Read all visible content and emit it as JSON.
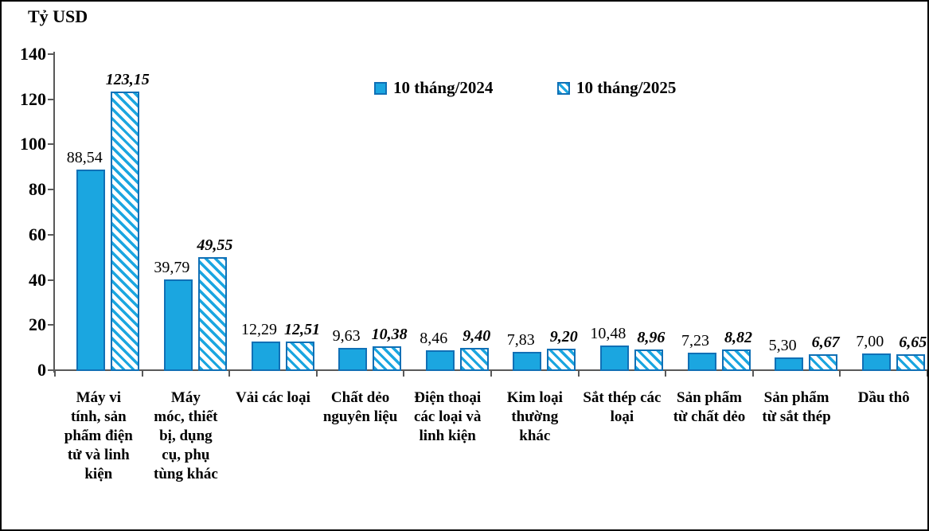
{
  "chart_data": {
    "type": "bar",
    "title": "Tỷ USD",
    "grid": false,
    "legend_position": "top-center",
    "ylim": [
      0,
      140
    ],
    "yticks": [
      0,
      20,
      40,
      60,
      80,
      100,
      120,
      140
    ],
    "colors": {
      "bar_fill": "#1ba6e0",
      "bar_border": "#1070b6",
      "axis": "#595959",
      "text": "#000000"
    },
    "categories": [
      {
        "name": "Máy vi tính, sản phẩm điện tử và linh kiện",
        "lines": [
          "Máy vi",
          "tính, sản",
          "phẩm điện",
          "tử và linh",
          "kiện"
        ]
      },
      {
        "name": "Máy móc, thiết bị, dụng cụ, phụ tùng khác",
        "lines": [
          "Máy",
          "móc, thiết",
          "bị, dụng",
          "cụ, phụ",
          "tùng khác"
        ]
      },
      {
        "name": "Vải các loại",
        "lines": [
          "Vải các loại"
        ]
      },
      {
        "name": "Chất dẻo nguyên liệu",
        "lines": [
          "Chất dẻo",
          "nguyên liệu"
        ]
      },
      {
        "name": "Điện thoại các loại và linh kiện",
        "lines": [
          "Điện thoại",
          "các loại và",
          "linh kiện"
        ]
      },
      {
        "name": "Kim loại thường khác",
        "lines": [
          "Kim loại",
          "thường",
          "khác"
        ]
      },
      {
        "name": "Sắt thép các loại",
        "lines": [
          "Sắt thép các",
          "loại"
        ]
      },
      {
        "name": "Sản phẩm từ chất dẻo",
        "lines": [
          "Sản phẩm",
          "từ chất dẻo"
        ]
      },
      {
        "name": "Sản phẩm từ sắt thép",
        "lines": [
          "Sản phẩm",
          "từ sắt thép"
        ]
      },
      {
        "name": "Dầu thô",
        "lines": [
          "Dầu thô"
        ]
      }
    ],
    "series": [
      {
        "name": "10 tháng/2024",
        "style": "solid",
        "values": [
          88.54,
          39.79,
          12.29,
          9.63,
          8.46,
          7.83,
          10.48,
          7.23,
          5.3,
          7.0
        ],
        "labels": [
          "88,54",
          "39,79",
          "12,29",
          "9,63",
          "8,46",
          "7,83",
          "10,48",
          "7,23",
          "5,30",
          "7,00"
        ]
      },
      {
        "name": "10 tháng/2025",
        "style": "hatched",
        "values": [
          123.15,
          49.55,
          12.51,
          10.38,
          9.4,
          9.2,
          8.96,
          8.82,
          6.67,
          6.65
        ],
        "labels": [
          "123,15",
          "49,55",
          "12,51",
          "10,38",
          "9,40",
          "9,20",
          "8,96",
          "8,82",
          "6,67",
          "6,65"
        ]
      }
    ]
  }
}
